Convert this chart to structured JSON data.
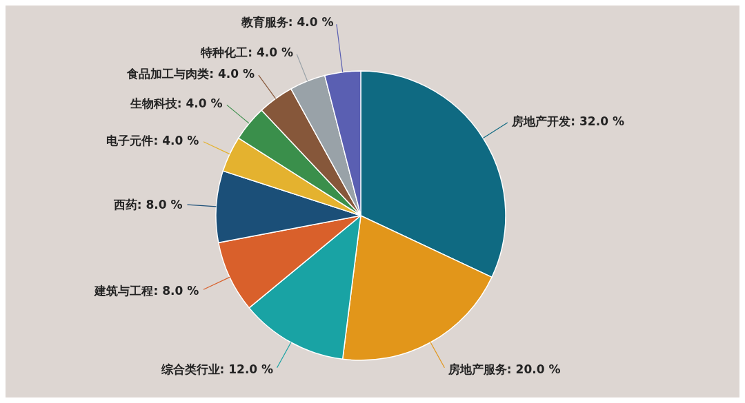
{
  "chart_data": {
    "type": "pie",
    "categories": [
      "房地产开发",
      "房地产服务",
      "综合类行业",
      "建筑与工程",
      "西药",
      "电子元件",
      "生物科技",
      "食品加工与肉类",
      "特种化工",
      "教育服务"
    ],
    "values": [
      32,
      20,
      12,
      8,
      8,
      4,
      4,
      4,
      4,
      4
    ],
    "value_labels": [
      "32.0 %",
      "20.0 %",
      "12.0 %",
      "8.0 %",
      "8.0 %",
      "4.0 %",
      "4.0 %",
      "4.0 %",
      "4.0 %",
      "4.0 %"
    ],
    "colors": [
      "#0f6a82",
      "#e2961a",
      "#19a3a4",
      "#d9602b",
      "#1b4f78",
      "#e4b22f",
      "#3a8f4b",
      "#86573a",
      "#99a2a8",
      "#5a5fb2"
    ]
  }
}
